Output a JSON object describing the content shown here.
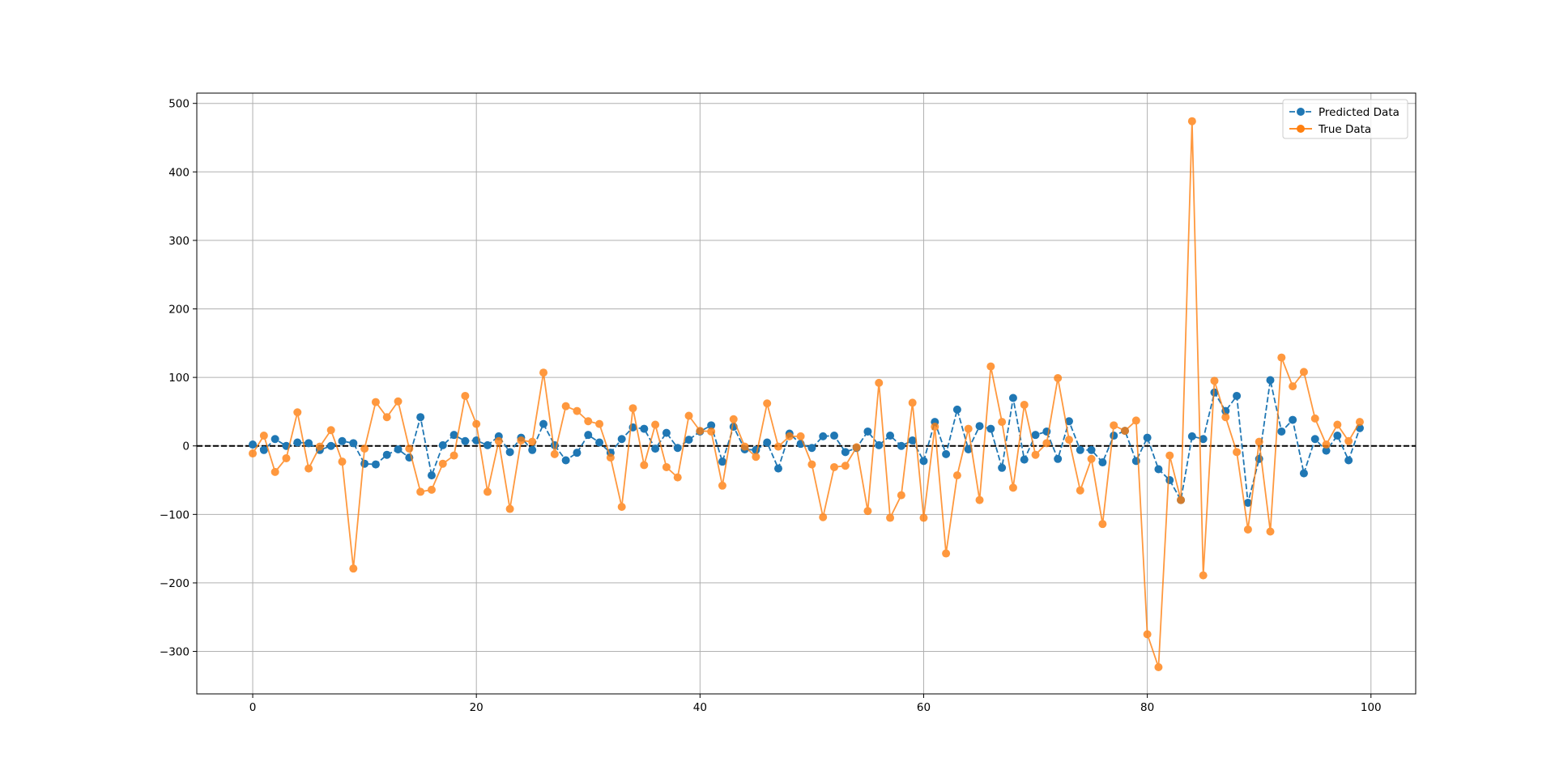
{
  "chart_data": {
    "type": "line",
    "title": "",
    "xlabel": "",
    "ylabel": "",
    "xlim": [
      -5,
      104
    ],
    "ylim": [
      -362,
      515
    ],
    "x_ticks": [
      0,
      20,
      40,
      60,
      80,
      100
    ],
    "x_tick_labels": [
      "0",
      "20",
      "40",
      "60",
      "80",
      "100"
    ],
    "y_ticks": [
      -300,
      -200,
      -100,
      0,
      100,
      200,
      300,
      400,
      500
    ],
    "y_tick_labels": [
      "−300",
      "−200",
      "−100",
      "0",
      "100",
      "200",
      "300",
      "400",
      "500"
    ],
    "grid": true,
    "legend_position": "top-right",
    "reference_line": {
      "y": 0,
      "style": "dashed",
      "color": "#000000"
    },
    "x": [
      0,
      1,
      2,
      3,
      4,
      5,
      6,
      7,
      8,
      9,
      10,
      11,
      12,
      13,
      14,
      15,
      16,
      17,
      18,
      19,
      20,
      21,
      22,
      23,
      24,
      25,
      26,
      27,
      28,
      29,
      30,
      31,
      32,
      33,
      34,
      35,
      36,
      37,
      38,
      39,
      40,
      41,
      42,
      43,
      44,
      45,
      46,
      47,
      48,
      49,
      50,
      51,
      52,
      53,
      54,
      55,
      56,
      57,
      58,
      59,
      60,
      61,
      62,
      63,
      64,
      65,
      66,
      67,
      68,
      69,
      70,
      71,
      72,
      73,
      74,
      75,
      76,
      77,
      78,
      79,
      80,
      81,
      82,
      83,
      84,
      85,
      86,
      87,
      88,
      89,
      90,
      91,
      92,
      93,
      94,
      95,
      96,
      97,
      98,
      99
    ],
    "series": [
      {
        "name": "Predicted Data",
        "color": "#1f77b4",
        "line_style": "dashed",
        "marker": "circle",
        "values": [
          2,
          -6,
          10,
          0,
          5,
          4,
          -6,
          0,
          7,
          4,
          -26,
          -27,
          -13,
          -5,
          -17,
          42,
          -43,
          1,
          16,
          7,
          8,
          1,
          14,
          -9,
          12,
          -6,
          32,
          1,
          -21,
          -10,
          16,
          5,
          -10,
          10,
          27,
          25,
          -4,
          19,
          -3,
          9,
          21,
          30,
          -23,
          28,
          -5,
          -6,
          5,
          -33,
          18,
          3,
          -3,
          14,
          15,
          -9,
          -3,
          21,
          1,
          15,
          0,
          8,
          -22,
          35,
          -12,
          53,
          -5,
          29,
          25,
          -32,
          70,
          -20,
          16,
          21,
          -19,
          36,
          -6,
          -6,
          -24,
          15,
          22,
          -22,
          12,
          -34,
          -50,
          -79,
          14,
          10,
          78,
          51,
          73,
          -83,
          -19,
          96,
          21,
          38,
          -40,
          10,
          -7,
          15,
          -21,
          26
        ]
      },
      {
        "name": "True Data",
        "color": "#ff7f0e",
        "line_style": "solid",
        "marker": "circle",
        "values": [
          -11,
          15,
          -38,
          -18,
          49,
          -33,
          -1,
          23,
          -23,
          -179,
          -4,
          64,
          42,
          65,
          -4,
          -67,
          -64,
          -26,
          -14,
          73,
          32,
          -67,
          7,
          -92,
          8,
          6,
          107,
          -12,
          58,
          51,
          36,
          32,
          -17,
          -89,
          55,
          -28,
          31,
          -31,
          -46,
          44,
          22,
          21,
          -58,
          39,
          -1,
          -16,
          62,
          -1,
          14,
          14,
          -27,
          -104,
          -31,
          -29,
          -2,
          -95,
          92,
          -105,
          -72,
          63,
          -105,
          28,
          -157,
          -43,
          25,
          -79,
          116,
          35,
          -61,
          60,
          -13,
          4,
          99,
          9,
          -65,
          -19,
          -114,
          30,
          22,
          37,
          -275,
          -323,
          -14,
          -79,
          474,
          -189,
          95,
          42,
          -9,
          -122,
          6,
          -125,
          129,
          87,
          108,
          40,
          2,
          31,
          7,
          35
        ]
      }
    ]
  }
}
